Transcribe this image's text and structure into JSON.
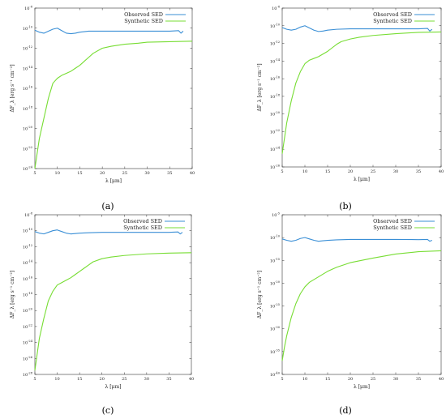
{
  "chart_data": [
    {
      "caption": "(a)",
      "type": "line",
      "xlabel": "λ [μm]",
      "ylabel": "ΔF_λ [erg s⁻¹ cm⁻²]",
      "xlim": [
        5,
        40
      ],
      "ylim_exp": [
        -24,
        -8
      ],
      "y_log": true,
      "x_ticks": [
        5,
        10,
        15,
        20,
        25,
        30,
        35,
        40
      ],
      "y_tick_exps": [
        -24,
        -22,
        -20,
        -18,
        -16,
        -14,
        -12,
        -10,
        -8
      ],
      "legend": "top-right",
      "series": [
        {
          "name": "Observed SED",
          "color": "#3a8fd6",
          "x": [
            5,
            6,
            7,
            8,
            9,
            10,
            11,
            12,
            13,
            14,
            15,
            17,
            20,
            25,
            30,
            35,
            37,
            37.5,
            38
          ],
          "log_y": [
            -10.2,
            -10.4,
            -10.5,
            -10.3,
            -10.1,
            -10.0,
            -10.25,
            -10.5,
            -10.55,
            -10.5,
            -10.4,
            -10.3,
            -10.3,
            -10.3,
            -10.3,
            -10.3,
            -10.25,
            -10.5,
            -10.3
          ]
        },
        {
          "name": "Synthetic SED",
          "color": "#77dd33",
          "x": [
            5,
            5.5,
            6,
            7,
            8,
            9,
            10,
            11,
            12,
            13,
            14,
            15,
            16,
            17,
            18,
            20,
            22,
            25,
            28,
            30,
            35,
            40
          ],
          "log_y": [
            -24,
            -22.5,
            -21,
            -19,
            -17,
            -15.5,
            -15,
            -14.7,
            -14.5,
            -14.3,
            -14,
            -13.7,
            -13.3,
            -12.9,
            -12.5,
            -12,
            -11.8,
            -11.6,
            -11.5,
            -11.4,
            -11.35,
            -11.3
          ]
        }
      ]
    },
    {
      "caption": "(b)",
      "type": "line",
      "xlabel": "λ [μm]",
      "ylabel": "ΔF_λ [erg s⁻¹ cm⁻²]",
      "xlim": [
        5,
        40
      ],
      "ylim_exp": [
        -26,
        -8
      ],
      "y_log": true,
      "x_ticks": [
        5,
        10,
        15,
        20,
        25,
        30,
        35,
        40
      ],
      "y_tick_exps": [
        -26,
        -24,
        -22,
        -20,
        -18,
        -16,
        -14,
        -12,
        -10,
        -8
      ],
      "legend": "top-right",
      "series": [
        {
          "name": "Observed SED",
          "color": "#3a8fd6",
          "x": [
            5,
            6,
            7,
            8,
            9,
            10,
            11,
            12,
            13,
            14,
            15,
            17,
            20,
            25,
            30,
            35,
            37,
            37.5,
            38
          ],
          "log_y": [
            -10.2,
            -10.4,
            -10.5,
            -10.4,
            -10.15,
            -10.0,
            -10.25,
            -10.5,
            -10.65,
            -10.6,
            -10.5,
            -10.4,
            -10.35,
            -10.35,
            -10.35,
            -10.35,
            -10.3,
            -10.6,
            -10.4
          ]
        },
        {
          "name": "Synthetic SED",
          "color": "#77dd33",
          "x": [
            5,
            6,
            7,
            8,
            9,
            10,
            11,
            12,
            13,
            14,
            15,
            16,
            17,
            18,
            20,
            22,
            25,
            30,
            35,
            40
          ],
          "log_y": [
            -24.5,
            -21,
            -18.5,
            -16.5,
            -15.2,
            -14.3,
            -13.9,
            -13.7,
            -13.5,
            -13.2,
            -12.9,
            -12.5,
            -12.1,
            -11.8,
            -11.5,
            -11.3,
            -11.1,
            -10.9,
            -10.75,
            -10.7
          ]
        }
      ]
    },
    {
      "caption": "(c)",
      "type": "line",
      "xlabel": "λ [μm]",
      "ylabel": "ΔF_λ [erg s⁻¹ cm⁻²]",
      "xlim": [
        5,
        40
      ],
      "ylim_exp": [
        -28,
        -8
      ],
      "y_log": true,
      "x_ticks": [
        5,
        10,
        15,
        20,
        25,
        30,
        35,
        40
      ],
      "y_tick_exps": [
        -28,
        -26,
        -24,
        -22,
        -20,
        -18,
        -16,
        -14,
        -12,
        -10,
        -8
      ],
      "legend": "top-right",
      "series": [
        {
          "name": "Observed SED",
          "color": "#3a8fd6",
          "x": [
            5,
            6,
            7,
            8,
            9,
            10,
            11,
            12,
            13,
            14,
            15,
            17,
            20,
            25,
            30,
            35,
            37,
            37.5,
            38
          ],
          "log_y": [
            -10.1,
            -10.3,
            -10.4,
            -10.2,
            -10.0,
            -9.9,
            -10.1,
            -10.3,
            -10.4,
            -10.35,
            -10.3,
            -10.25,
            -10.2,
            -10.2,
            -10.2,
            -10.2,
            -10.15,
            -10.4,
            -10.2
          ]
        },
        {
          "name": "Synthetic SED",
          "color": "#77dd33",
          "x": [
            5,
            5.5,
            6,
            7,
            8,
            9,
            10,
            11,
            12,
            13,
            14,
            15,
            16,
            17,
            18,
            20,
            22,
            25,
            30,
            35,
            40
          ],
          "log_y": [
            -27.5,
            -25.5,
            -23.5,
            -21,
            -18.8,
            -17.6,
            -16.8,
            -16.5,
            -16.2,
            -15.9,
            -15.5,
            -15.1,
            -14.7,
            -14.3,
            -13.9,
            -13.5,
            -13.3,
            -13.1,
            -12.9,
            -12.8,
            -12.75
          ]
        }
      ]
    },
    {
      "caption": "(d)",
      "type": "line",
      "xlabel": "λ [μm]",
      "ylabel": "ΔF_λ [erg s⁻¹ cm⁻²]",
      "xlim": [
        5,
        40
      ],
      "ylim_exp": [
        -40,
        -5
      ],
      "y_log": true,
      "x_ticks": [
        5,
        10,
        15,
        20,
        25,
        30,
        35,
        40
      ],
      "y_tick_exps": [
        -40,
        -35,
        -30,
        -25,
        -20,
        -15,
        -10,
        -5
      ],
      "legend": "top-right",
      "series": [
        {
          "name": "Observed SED",
          "color": "#3a8fd6",
          "x": [
            5,
            6,
            7,
            8,
            9,
            10,
            11,
            12,
            13,
            14,
            15,
            17,
            20,
            25,
            30,
            35,
            37,
            37.5,
            38
          ],
          "log_y": [
            -10.3,
            -10.6,
            -10.8,
            -10.6,
            -10.2,
            -10.0,
            -10.3,
            -10.6,
            -10.8,
            -10.7,
            -10.6,
            -10.5,
            -10.4,
            -10.4,
            -10.4,
            -10.45,
            -10.4,
            -10.8,
            -10.6
          ]
        },
        {
          "name": "Synthetic SED",
          "color": "#77dd33",
          "x": [
            5,
            5.5,
            6,
            7,
            8,
            9,
            10,
            11,
            12,
            13,
            14,
            15,
            17,
            20,
            25,
            30,
            35,
            40
          ],
          "log_y": [
            -37,
            -34,
            -31.5,
            -27.5,
            -24.5,
            -22.3,
            -20.8,
            -19.8,
            -19.2,
            -18.6,
            -18,
            -17.4,
            -16.5,
            -15.5,
            -14.5,
            -13.6,
            -13.1,
            -12.9
          ]
        }
      ]
    }
  ]
}
